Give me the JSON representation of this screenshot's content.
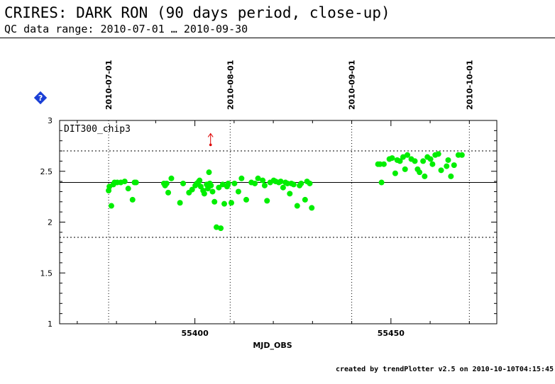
{
  "header": {
    "title": "CRIRES: DARK RON (90 days period, close-up)",
    "subtitle": "QC data range: 2010-07-01 … 2010-09-30"
  },
  "footer": {
    "credit": "created by trendPlotter v2.5 on 2010-10-10T04:15:45"
  },
  "help_icon": "help-diamond-icon",
  "chart_data": {
    "type": "scatter",
    "panel_label": "DIT300_chip3",
    "xlabel": "MJD_OBS",
    "ylabel": "",
    "xlim": [
      55365.5,
      55477
    ],
    "ylim": [
      1,
      3
    ],
    "x_ticks": [
      55400,
      55450
    ],
    "x_tick_labels": [
      "55400",
      "55450"
    ],
    "y_ticks": [
      1,
      1.5,
      2,
      2.5,
      3
    ],
    "y_tick_labels": [
      "1",
      "1.5",
      "2",
      "2.5",
      "3"
    ],
    "date_markers": [
      {
        "label": "2010-07-01",
        "x": 55378
      },
      {
        "label": "2010-08-01",
        "x": 55409
      },
      {
        "label": "2010-09-01",
        "x": 55440
      },
      {
        "label": "2010-10-01",
        "x": 55470
      }
    ],
    "reference_line": 2.39,
    "threshold_lines": [
      2.7,
      1.85
    ],
    "outlier_arrow": {
      "x": 55404,
      "y": 2.76
    },
    "grid": false,
    "colors": {
      "points": "#00ee00",
      "outlier": "#dd0000",
      "help_icon": "#1a3fd6"
    },
    "series": [
      {
        "x": [
          55378.0,
          55378.2,
          55378.7,
          55379.2,
          55379.5,
          55380.2,
          55381.1,
          55382.1,
          55383.0,
          55384.1,
          55384.6,
          55385.0,
          55392.1,
          55392.4,
          55392.8,
          55393.2,
          55394.0,
          55396.2,
          55397.0,
          55398.5,
          55399.3,
          55400.1,
          55400.5,
          55401.0,
          55401.2,
          55401.5,
          55402.1,
          55402.4,
          55403.0,
          55403.3,
          55403.6,
          55403.8,
          55404.1,
          55404.5,
          55405.0,
          55405.5,
          55406.1,
          55406.6,
          55407.1,
          55407.5,
          55408.2,
          55408.5,
          55409.3,
          55410.1,
          55411.1,
          55411.9,
          55413.1,
          55414.4,
          55415.3,
          55416.1,
          55417.3,
          55417.8,
          55418.4,
          55419.2,
          55420.1,
          55420.6,
          55421.4,
          55421.9,
          55422.5,
          55423.1,
          55423.6,
          55424.2,
          55424.6,
          55425.2,
          55426.1,
          55426.7,
          55427.1,
          55428.1,
          55428.6,
          55429.3,
          55429.8,
          55446.7,
          55447.2,
          55447.6,
          55448.2,
          55449.6,
          55450.3,
          55451.1,
          55451.6,
          55452.3,
          55453.1,
          55453.6,
          55454.2,
          55455.2,
          55456.1,
          55456.8,
          55457.3,
          55458.2,
          55458.6,
          55459.3,
          55460.1,
          55460.6,
          55461.3,
          55462.1,
          55462.8,
          55464.2,
          55464.6,
          55465.3,
          55466.1,
          55467.2,
          55468.1
        ],
        "y": [
          2.31,
          2.35,
          2.16,
          2.37,
          2.39,
          2.39,
          2.39,
          2.4,
          2.33,
          2.22,
          2.39,
          2.39,
          2.38,
          2.36,
          2.38,
          2.29,
          2.43,
          2.19,
          2.38,
          2.29,
          2.32,
          2.36,
          2.38,
          2.4,
          2.41,
          2.35,
          2.31,
          2.28,
          2.37,
          2.33,
          2.49,
          2.38,
          2.36,
          2.3,
          2.2,
          1.95,
          2.34,
          1.94,
          2.37,
          2.18,
          2.35,
          2.38,
          2.19,
          2.38,
          2.3,
          2.43,
          2.22,
          2.39,
          2.38,
          2.43,
          2.41,
          2.36,
          2.21,
          2.39,
          2.41,
          2.4,
          2.39,
          2.4,
          2.34,
          2.39,
          2.38,
          2.28,
          2.38,
          2.37,
          2.16,
          2.36,
          2.38,
          2.22,
          2.4,
          2.38,
          2.14,
          2.57,
          2.57,
          2.39,
          2.57,
          2.62,
          2.63,
          2.48,
          2.61,
          2.6,
          2.64,
          2.52,
          2.66,
          2.62,
          2.6,
          2.52,
          2.49,
          2.6,
          2.45,
          2.64,
          2.62,
          2.57,
          2.66,
          2.67,
          2.51,
          2.55,
          2.61,
          2.45,
          2.56,
          2.66,
          2.66
        ]
      }
    ]
  }
}
